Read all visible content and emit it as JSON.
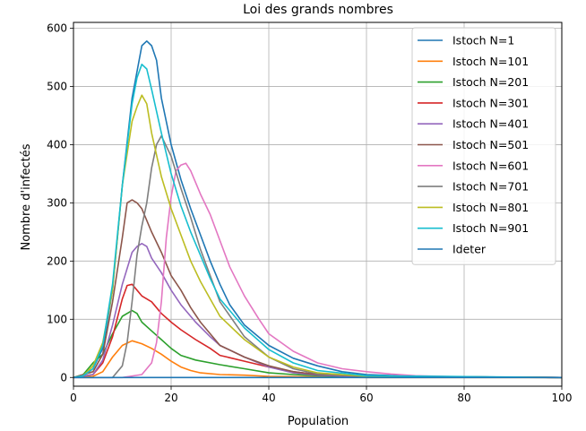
{
  "chart_data": {
    "type": "line",
    "title": "Loi des grands nombres",
    "xlabel": "Population",
    "ylabel": "Nombre d'infectés",
    "xlim": [
      0,
      100
    ],
    "ylim": [
      -15,
      610
    ],
    "xticks": [
      0,
      20,
      40,
      60,
      80,
      100
    ],
    "yticks": [
      0,
      100,
      200,
      300,
      400,
      500,
      600
    ],
    "grid": true,
    "legend_position": "top-right",
    "series": [
      {
        "name": "Istoch N=1",
        "color": "#1f77b4",
        "x": [
          0,
          2,
          4,
          6,
          8,
          10,
          12,
          14,
          15,
          16,
          17,
          18,
          20,
          22,
          24,
          26,
          28,
          30,
          32,
          35,
          40,
          45,
          50,
          55,
          60,
          70,
          80,
          100
        ],
        "y": [
          0,
          3,
          15,
          50,
          150,
          330,
          480,
          570,
          578,
          570,
          545,
          480,
          400,
          340,
          290,
          245,
          200,
          160,
          125,
          90,
          55,
          33,
          20,
          10,
          5,
          2,
          1,
          0
        ]
      },
      {
        "name": "Istoch N=101",
        "color": "#ff7f0e",
        "x": [
          0,
          4,
          6,
          8,
          10,
          12,
          14,
          16,
          18,
          20,
          22,
          24,
          26,
          30,
          35,
          40,
          50,
          60,
          100
        ],
        "y": [
          0,
          2,
          10,
          35,
          55,
          63,
          58,
          50,
          40,
          28,
          18,
          12,
          8,
          5,
          4,
          2,
          1,
          0,
          0
        ]
      },
      {
        "name": "Istoch N=201",
        "color": "#2ca02c",
        "x": [
          0,
          2,
          4,
          6,
          8,
          10,
          12,
          13,
          14,
          16,
          18,
          20,
          22,
          25,
          30,
          35,
          40,
          45,
          50,
          60,
          100
        ],
        "y": [
          0,
          5,
          25,
          40,
          75,
          105,
          115,
          110,
          95,
          80,
          65,
          50,
          38,
          30,
          22,
          15,
          8,
          5,
          3,
          1,
          0
        ]
      },
      {
        "name": "Istoch N=301",
        "color": "#d62728",
        "x": [
          0,
          4,
          6,
          8,
          10,
          11,
          12,
          13,
          14,
          16,
          18,
          20,
          22,
          25,
          28,
          30,
          35,
          40,
          45,
          50,
          60,
          100
        ],
        "y": [
          0,
          5,
          25,
          70,
          135,
          158,
          160,
          150,
          140,
          130,
          110,
          95,
          82,
          65,
          50,
          38,
          28,
          18,
          10,
          5,
          2,
          0
        ]
      },
      {
        "name": "Istoch N=401",
        "color": "#9467bd",
        "x": [
          0,
          4,
          6,
          8,
          10,
          12,
          13,
          14,
          15,
          16,
          18,
          20,
          22,
          25,
          28,
          30,
          35,
          40,
          45,
          50,
          60,
          100
        ],
        "y": [
          0,
          5,
          30,
          90,
          160,
          215,
          225,
          230,
          225,
          205,
          180,
          150,
          125,
          95,
          70,
          55,
          35,
          18,
          8,
          4,
          1,
          0
        ]
      },
      {
        "name": "Istoch N=501",
        "color": "#8c564b",
        "x": [
          0,
          4,
          6,
          8,
          10,
          11,
          12,
          13,
          14,
          16,
          18,
          20,
          22,
          24,
          26,
          28,
          30,
          35,
          40,
          45,
          50,
          60,
          100
        ],
        "y": [
          0,
          10,
          40,
          130,
          240,
          300,
          305,
          300,
          290,
          250,
          215,
          175,
          150,
          120,
          95,
          75,
          55,
          35,
          20,
          10,
          5,
          2,
          0
        ]
      },
      {
        "name": "Istoch N=601",
        "color": "#e377c2",
        "x": [
          0,
          10,
          14,
          16,
          17,
          18,
          19,
          20,
          21,
          22,
          23,
          24,
          26,
          28,
          30,
          32,
          35,
          38,
          40,
          45,
          50,
          55,
          60,
          65,
          70,
          80,
          100
        ],
        "y": [
          0,
          0,
          5,
          25,
          60,
          130,
          240,
          310,
          355,
          365,
          368,
          355,
          315,
          280,
          235,
          190,
          140,
          100,
          75,
          45,
          25,
          15,
          10,
          6,
          3,
          1,
          0
        ]
      },
      {
        "name": "Istoch N=701",
        "color": "#7f7f7f",
        "x": [
          0,
          8,
          10,
          11,
          12,
          13,
          14,
          15,
          16,
          17,
          18,
          20,
          22,
          24,
          26,
          28,
          30,
          35,
          40,
          45,
          50,
          60,
          100
        ],
        "y": [
          0,
          0,
          20,
          60,
          130,
          210,
          260,
          300,
          360,
          400,
          415,
          380,
          325,
          275,
          220,
          175,
          130,
          70,
          35,
          15,
          6,
          2,
          0
        ]
      },
      {
        "name": "Istoch N=801",
        "color": "#bcbd22",
        "x": [
          0,
          2,
          4,
          6,
          8,
          10,
          12,
          13,
          14,
          15,
          16,
          18,
          20,
          22,
          24,
          26,
          28,
          30,
          35,
          40,
          45,
          50,
          60,
          100
        ],
        "y": [
          0,
          3,
          20,
          60,
          150,
          330,
          440,
          465,
          485,
          470,
          420,
          345,
          290,
          245,
          200,
          165,
          135,
          105,
          65,
          35,
          18,
          8,
          2,
          0
        ]
      },
      {
        "name": "Istoch N=901",
        "color": "#17becf",
        "x": [
          0,
          2,
          4,
          6,
          8,
          10,
          12,
          13,
          14,
          15,
          16,
          18,
          20,
          22,
          24,
          26,
          28,
          30,
          35,
          40,
          45,
          50,
          60,
          100
        ],
        "y": [
          0,
          3,
          15,
          55,
          160,
          330,
          470,
          515,
          538,
          530,
          495,
          420,
          350,
          295,
          250,
          210,
          170,
          135,
          85,
          48,
          25,
          12,
          3,
          0
        ]
      },
      {
        "name": "Ideter",
        "color": "#1f77b4",
        "x": [
          0,
          100
        ],
        "y": [
          0,
          0
        ]
      }
    ]
  }
}
